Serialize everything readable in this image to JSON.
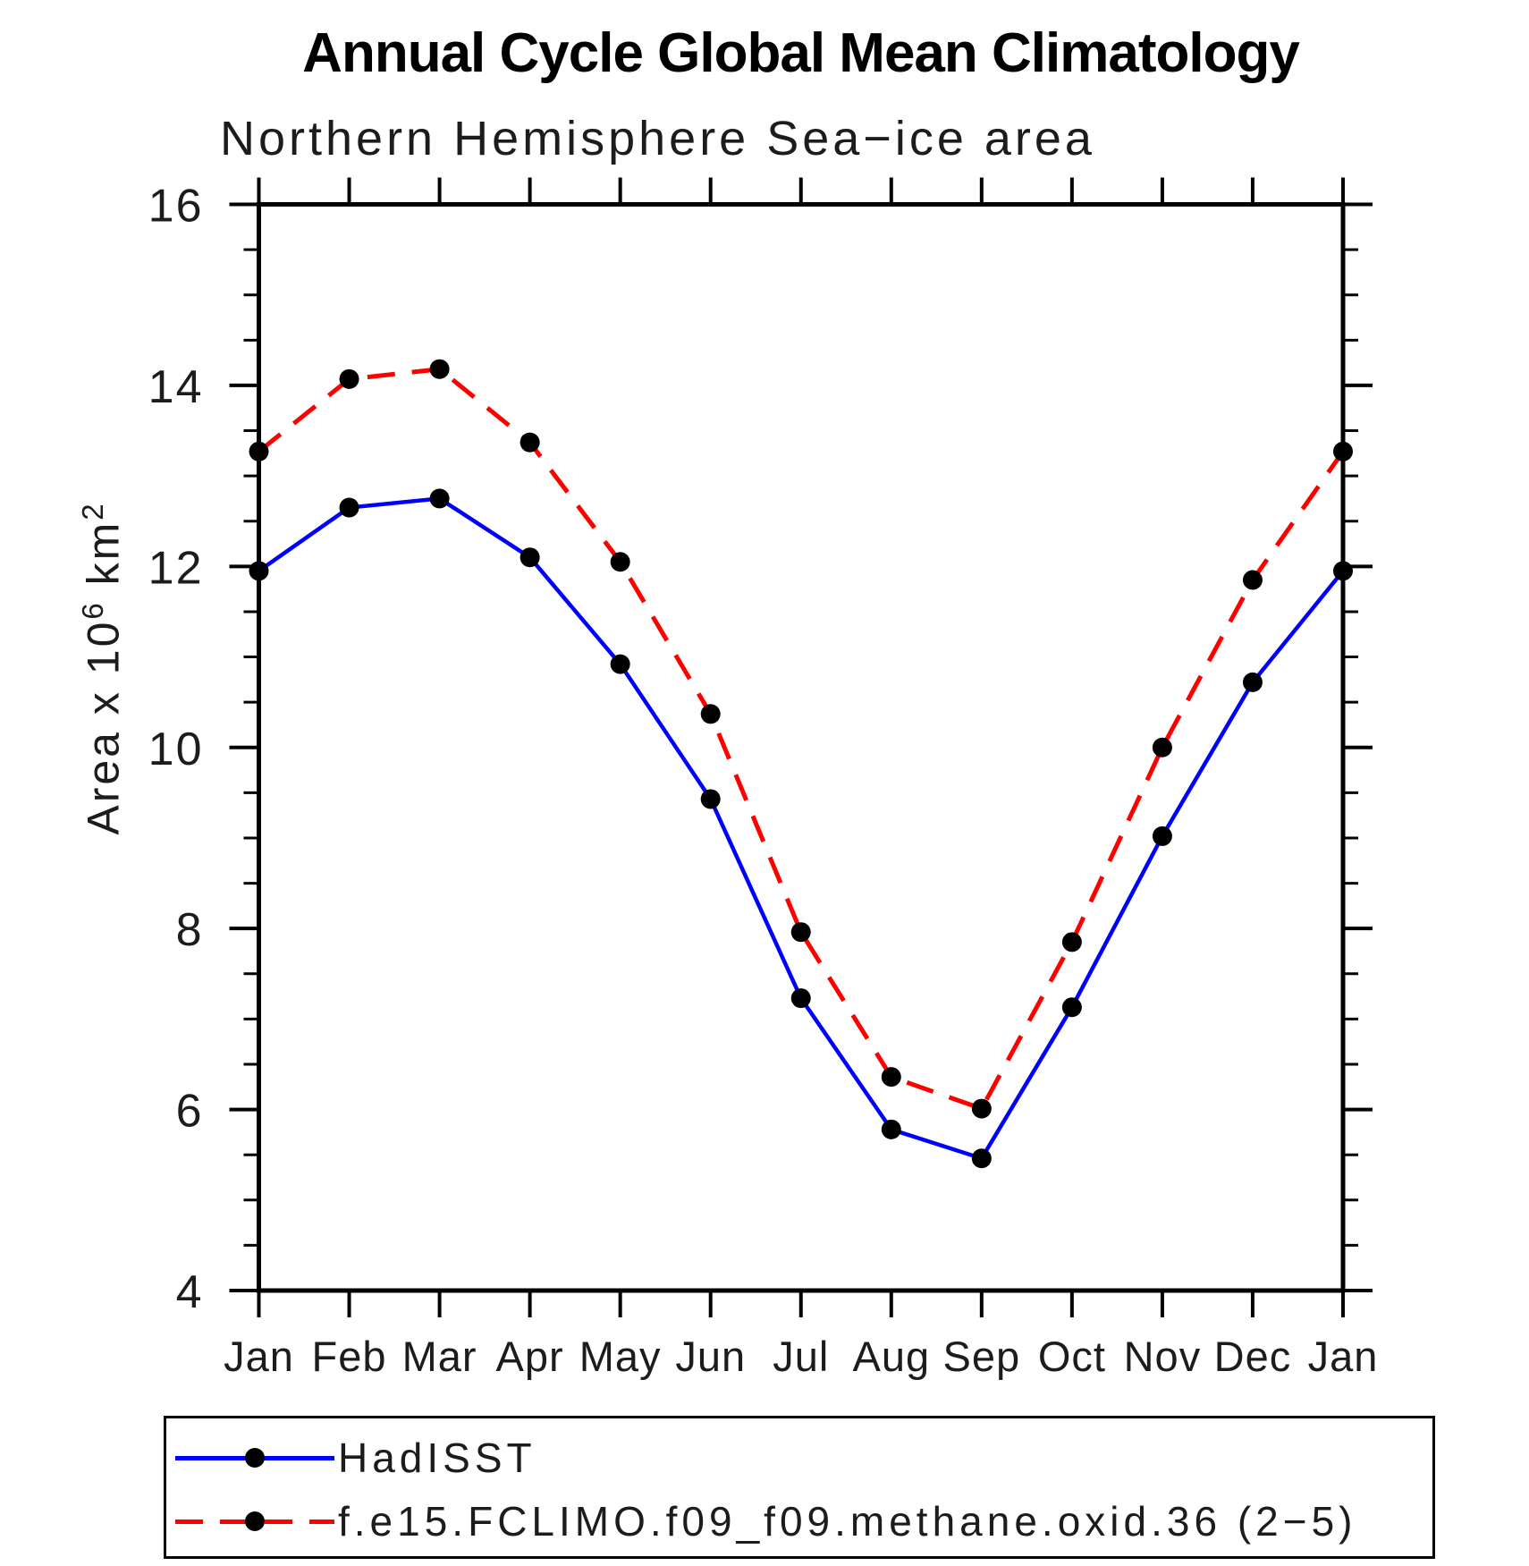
{
  "title": "Annual Cycle Global Mean Climatology",
  "subtitle": "Northern Hemisphere Sea−ice area",
  "y_axis": {
    "label_prefix": "Area x 10",
    "label_exponent": "6",
    "label_unit": " km",
    "label_unit_exponent": "2",
    "min": 4,
    "max": 16,
    "major_step": 2,
    "minor_step": 0.5,
    "ticks": [
      16,
      14,
      12,
      10,
      8,
      6,
      4
    ]
  },
  "x_axis": {
    "months": [
      "Jan",
      "Feb",
      "Mar",
      "Apr",
      "May",
      "Jun",
      "Jul",
      "Aug",
      "Sep",
      "Oct",
      "Nov",
      "Dec",
      "Jan"
    ]
  },
  "colors": {
    "hadisst_line": "#0000ff",
    "model_line": "#ff0000",
    "marker": "#000000",
    "axis": "#000000"
  },
  "legend": {
    "entries": [
      {
        "label": "HadISST"
      },
      {
        "label": "f.e15.FCLIMO.f09_f09.methane.oxid.36 (2−5)"
      }
    ]
  },
  "chart_data": {
    "type": "line",
    "title": "Annual Cycle Global Mean Climatology",
    "subtitle": "Northern Hemisphere Sea-ice area",
    "xlabel": "",
    "ylabel": "Area x 10^6 km^2",
    "ylim": [
      4,
      16
    ],
    "grid": false,
    "legend_position": "bottom",
    "categories": [
      "Jan",
      "Feb",
      "Mar",
      "Apr",
      "May",
      "Jun",
      "Jul",
      "Aug",
      "Sep",
      "Oct",
      "Nov",
      "Dec",
      "Jan"
    ],
    "series": [
      {
        "name": "HadISST",
        "color": "#0000ff",
        "style": "solid",
        "marker": "circle",
        "marker_color": "#000000",
        "values": [
          11.95,
          12.65,
          12.75,
          12.1,
          10.92,
          9.43,
          7.23,
          5.78,
          5.46,
          7.13,
          9.02,
          10.72,
          11.95
        ]
      },
      {
        "name": "f.e15.FCLIMO.f09_f09.methane.oxid.36 (2−5)",
        "color": "#ff0000",
        "style": "dashed",
        "marker": "circle",
        "marker_color": "#000000",
        "values": [
          13.27,
          14.07,
          14.18,
          13.37,
          12.05,
          10.37,
          7.96,
          6.36,
          6.01,
          7.85,
          10.0,
          11.85,
          13.27
        ]
      }
    ]
  }
}
